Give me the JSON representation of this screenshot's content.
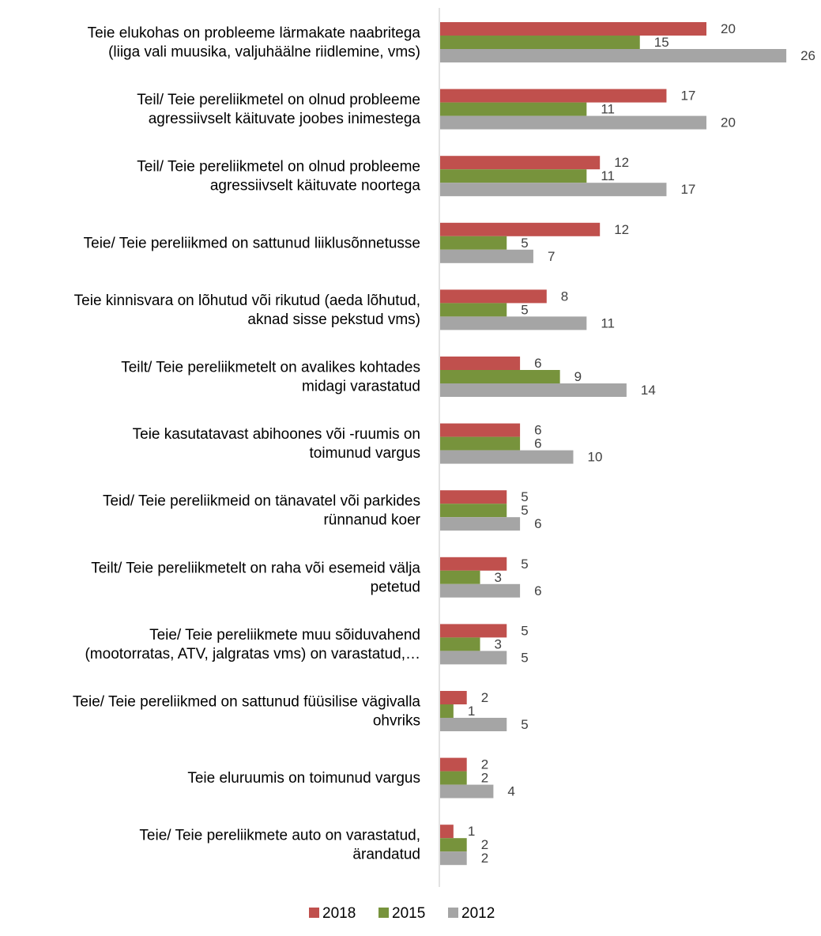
{
  "chart_data": {
    "type": "bar",
    "orientation": "horizontal",
    "title": "",
    "xlabel": "",
    "ylabel": "",
    "xlim": [
      0,
      26
    ],
    "grid": false,
    "legend_position": "bottom",
    "categories": [
      [
        "Teie elukohas on probleeme lärmakate naabritega",
        "(liiga vali muusika, valjuhäälne riidlemine, vms)"
      ],
      [
        "Teil/ Teie pereliikmetel on olnud probleeme",
        "agressiivselt käituvate joobes inimestega"
      ],
      [
        "Teil/ Teie pereliikmetel on olnud probleeme",
        "agressiivselt käituvate noortega"
      ],
      [
        "Teie/ Teie pereliikmed on sattunud liiklusõnnetusse"
      ],
      [
        "Teie kinnisvara on lõhutud või rikutud (aeda lõhutud,",
        "aknad sisse pekstud vms)"
      ],
      [
        "Teilt/ Teie pereliikmetelt on avalikes kohtades",
        "midagi varastatud"
      ],
      [
        "Teie kasutatavast abihoones või -ruumis on",
        "toimunud vargus"
      ],
      [
        "Teid/ Teie pereliikmeid on tänavatel või parkides",
        "rünnanud koer"
      ],
      [
        "Teilt/ Teie pereliikmetelt on raha või esemeid välja",
        "petetud"
      ],
      [
        "Teie/ Teie pereliikmete muu sõiduvahend",
        "(mootorratas, ATV, jalgratas vms) on varastatud,…"
      ],
      [
        "Teie/ Teie pereliikmed on sattunud füüsilise vägivalla",
        "ohvriks"
      ],
      [
        "Teie eluruumis on toimunud vargus"
      ],
      [
        "Teie/ Teie pereliikmete auto on varastatud,",
        "ärandatud"
      ]
    ],
    "series": [
      {
        "name": "2018",
        "color": "#C0504D",
        "values": [
          20,
          17,
          12,
          12,
          8,
          6,
          6,
          5,
          5,
          5,
          2,
          2,
          1
        ]
      },
      {
        "name": "2015",
        "color": "#77933C",
        "values": [
          15,
          11,
          11,
          5,
          5,
          9,
          6,
          5,
          3,
          3,
          1,
          2,
          2
        ]
      },
      {
        "name": "2012",
        "color": "#A5A5A5",
        "values": [
          26,
          20,
          17,
          7,
          11,
          14,
          10,
          6,
          6,
          5,
          5,
          4,
          2
        ]
      }
    ]
  }
}
